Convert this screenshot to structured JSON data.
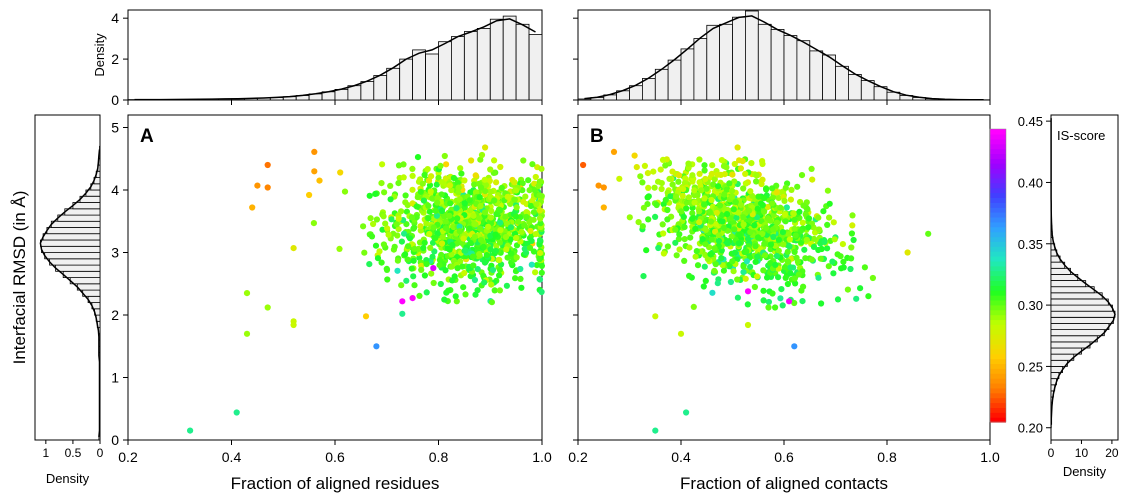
{
  "chart_data": [
    {
      "type": "scatter",
      "panel_label": "A",
      "xlabel": "Fraction of aligned residues",
      "ylabel": "Interfacial RMSD (in Å)",
      "xlim": [
        0.2,
        1.0
      ],
      "ylim": [
        0,
        5.2
      ],
      "x_ticks": [
        "0.2",
        "0.4",
        "0.6",
        "0.8",
        "1.0"
      ],
      "y_ticks": [
        "0",
        "1",
        "2",
        "3",
        "4",
        "5"
      ],
      "color_by": "IS-score",
      "highlight_points": [
        {
          "x": 0.32,
          "y": 0.15,
          "is": 0.33
        },
        {
          "x": 0.41,
          "y": 0.44,
          "is": 0.33
        },
        {
          "x": 0.43,
          "y": 1.7,
          "is": 0.29
        },
        {
          "x": 0.43,
          "y": 2.35,
          "is": 0.29
        },
        {
          "x": 0.47,
          "y": 2.12,
          "is": 0.29
        },
        {
          "x": 0.52,
          "y": 1.9,
          "is": 0.28
        },
        {
          "x": 0.52,
          "y": 1.84,
          "is": 0.28
        },
        {
          "x": 0.52,
          "y": 3.07,
          "is": 0.27
        },
        {
          "x": 0.44,
          "y": 3.72,
          "is": 0.245
        },
        {
          "x": 0.45,
          "y": 4.07,
          "is": 0.235
        },
        {
          "x": 0.47,
          "y": 4.4,
          "is": 0.225
        },
        {
          "x": 0.47,
          "y": 4.04,
          "is": 0.23
        },
        {
          "x": 0.56,
          "y": 4.61,
          "is": 0.235
        },
        {
          "x": 0.56,
          "y": 4.3,
          "is": 0.24
        },
        {
          "x": 0.57,
          "y": 4.15,
          "is": 0.25
        },
        {
          "x": 0.55,
          "y": 3.92,
          "is": 0.255
        },
        {
          "x": 0.61,
          "y": 4.28,
          "is": 0.26
        },
        {
          "x": 0.66,
          "y": 1.98,
          "is": 0.255
        },
        {
          "x": 0.68,
          "y": 1.5,
          "is": 0.37
        },
        {
          "x": 0.73,
          "y": 2.22,
          "is": 0.45
        },
        {
          "x": 0.75,
          "y": 2.27,
          "is": 0.45
        },
        {
          "x": 0.79,
          "y": 2.75,
          "is": 0.44
        },
        {
          "x": 0.73,
          "y": 2.02,
          "is": 0.33
        },
        {
          "x": 0.89,
          "y": 4.68,
          "is": 0.27
        }
      ],
      "cloud": {
        "x_range": [
          0.55,
          1.0
        ],
        "y_range": [
          2.2,
          4.6
        ],
        "x_center": 0.86,
        "y_center": 3.4,
        "is_center": 0.3
      }
    },
    {
      "type": "scatter",
      "panel_label": "B",
      "xlabel": "Fraction of aligned contacts",
      "ylabel": "",
      "xlim": [
        0.2,
        1.0
      ],
      "ylim": [
        0,
        5.2
      ],
      "x_ticks": [
        "0.2",
        "0.4",
        "0.6",
        "0.8",
        "1.0"
      ],
      "color_by": "IS-score",
      "highlight_points": [
        {
          "x": 0.35,
          "y": 0.15,
          "is": 0.33
        },
        {
          "x": 0.41,
          "y": 0.44,
          "is": 0.33
        },
        {
          "x": 0.21,
          "y": 4.4,
          "is": 0.22
        },
        {
          "x": 0.24,
          "y": 4.07,
          "is": 0.235
        },
        {
          "x": 0.25,
          "y": 4.04,
          "is": 0.235
        },
        {
          "x": 0.27,
          "y": 4.61,
          "is": 0.24
        },
        {
          "x": 0.25,
          "y": 3.72,
          "is": 0.245
        },
        {
          "x": 0.31,
          "y": 4.55,
          "is": 0.26
        },
        {
          "x": 0.35,
          "y": 1.98,
          "is": 0.28
        },
        {
          "x": 0.4,
          "y": 1.7,
          "is": 0.28
        },
        {
          "x": 0.53,
          "y": 1.84,
          "is": 0.28
        },
        {
          "x": 0.57,
          "y": 2.12,
          "is": 0.3
        },
        {
          "x": 0.53,
          "y": 2.38,
          "is": 0.45
        },
        {
          "x": 0.61,
          "y": 2.22,
          "is": 0.45
        },
        {
          "x": 0.62,
          "y": 1.5,
          "is": 0.37
        },
        {
          "x": 0.51,
          "y": 4.68,
          "is": 0.27
        },
        {
          "x": 0.88,
          "y": 3.3,
          "is": 0.3
        },
        {
          "x": 0.84,
          "y": 3.0,
          "is": 0.27
        }
      ],
      "cloud": {
        "x_range": [
          0.28,
          0.86
        ],
        "y_range": [
          2.1,
          4.5
        ],
        "x_center": 0.52,
        "y_center": 3.45,
        "is_center": 0.3
      }
    },
    {
      "type": "bar",
      "role": "marginal-histogram-top-A",
      "ylabel": "Density",
      "ylim": [
        0,
        4.4
      ],
      "y_ticks": [
        "0",
        "2",
        "4"
      ],
      "bin_start": 0.2,
      "bin_width": 0.025,
      "values": [
        0.02,
        0.02,
        0.02,
        0.02,
        0.03,
        0.03,
        0.05,
        0.05,
        0.06,
        0.08,
        0.1,
        0.12,
        0.16,
        0.22,
        0.3,
        0.4,
        0.52,
        0.7,
        0.9,
        1.2,
        1.55,
        2.0,
        2.45,
        2.25,
        2.85,
        3.1,
        3.35,
        3.5,
        3.95,
        4.1,
        3.7,
        3.2
      ]
    },
    {
      "type": "bar",
      "role": "marginal-histogram-top-B",
      "bin_start": 0.2,
      "bin_width": 0.025,
      "values": [
        0.05,
        0.12,
        0.25,
        0.45,
        0.7,
        1.05,
        1.5,
        1.95,
        2.5,
        3.0,
        3.65,
        3.7,
        4.05,
        4.35,
        3.7,
        3.45,
        3.15,
        2.9,
        2.4,
        2.2,
        1.65,
        1.25,
        0.95,
        0.65,
        0.38,
        0.22,
        0.12,
        0.06,
        0.03,
        0.02,
        0.01,
        0.01
      ]
    },
    {
      "type": "bar",
      "role": "marginal-histogram-left-rmsd",
      "xlabel": "Density",
      "x_ticks": [
        "1",
        "0.5",
        "0"
      ],
      "xlim": [
        0,
        1.2
      ],
      "bin_start": 0.0,
      "bin_width": 0.1,
      "values": [
        0.02,
        0.01,
        0.01,
        0.01,
        0.01,
        0.01,
        0.01,
        0.01,
        0.01,
        0.01,
        0.01,
        0.01,
        0.01,
        0.02,
        0.02,
        0.02,
        0.02,
        0.03,
        0.05,
        0.07,
        0.1,
        0.15,
        0.22,
        0.32,
        0.42,
        0.55,
        0.68,
        0.82,
        0.93,
        1.02,
        1.08,
        1.1,
        1.05,
        0.98,
        0.9,
        0.78,
        0.65,
        0.5,
        0.37,
        0.26,
        0.17,
        0.11,
        0.07,
        0.04,
        0.03,
        0.02,
        0.01
      ]
    },
    {
      "type": "bar",
      "role": "marginal-histogram-right-isscore",
      "xlabel": "Density",
      "x_ticks": [
        "0",
        "10",
        "20"
      ],
      "xlim": [
        0,
        22
      ],
      "bin_start": 0.2,
      "bin_width": 0.005,
      "values": [
        0.1,
        0.1,
        0.2,
        0.3,
        0.5,
        0.8,
        1.2,
        1.8,
        2.6,
        3.8,
        5.4,
        7.5,
        10.0,
        12.8,
        15.2,
        17.5,
        19.0,
        20.5,
        21.0,
        20.2,
        18.8,
        16.8,
        14.2,
        11.4,
        8.8,
        6.4,
        4.5,
        3.0,
        1.9,
        1.2,
        0.7,
        0.4,
        0.25,
        0.15,
        0.1,
        0.05,
        0.05,
        0.03,
        0.02,
        0.02,
        0.02,
        0.02,
        0.02,
        0.02,
        0.02,
        0.02,
        0.02,
        0.02,
        0.02,
        0.02,
        0.02
      ]
    },
    {
      "type": "colorbar",
      "label": "IS-score",
      "ylim": [
        0.19,
        0.455
      ],
      "ticks": [
        "0.20",
        "0.25",
        "0.30",
        "0.35",
        "0.40",
        "0.45"
      ],
      "colormap": [
        "#ff0000",
        "#ff8000",
        "#ffd000",
        "#c0ff00",
        "#20ff20",
        "#20e8c0",
        "#30a0ff",
        "#4040ff",
        "#a000ff",
        "#ff00ff"
      ]
    }
  ]
}
